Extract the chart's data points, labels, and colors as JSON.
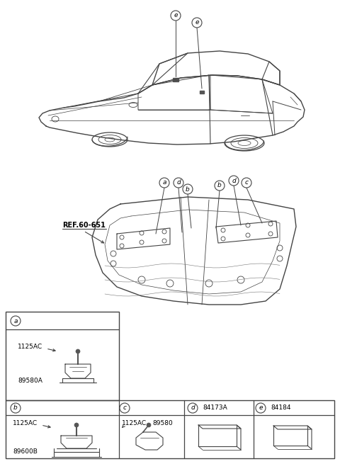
{
  "bg_color": "#ffffff",
  "fig_width": 4.8,
  "fig_height": 6.55,
  "dpi": 100,
  "parts": {
    "a_part1": "1125AC",
    "a_part2": "89580A",
    "b_part1": "1125AC",
    "b_part2": "89600B",
    "c_part1": "1125AC",
    "c_part2": "89580",
    "d_part_num": "84173A",
    "e_part_num": "84184"
  },
  "ref_text": "REF.60-651",
  "lc": "#444444",
  "tc": "#000000",
  "gray": "#888888"
}
